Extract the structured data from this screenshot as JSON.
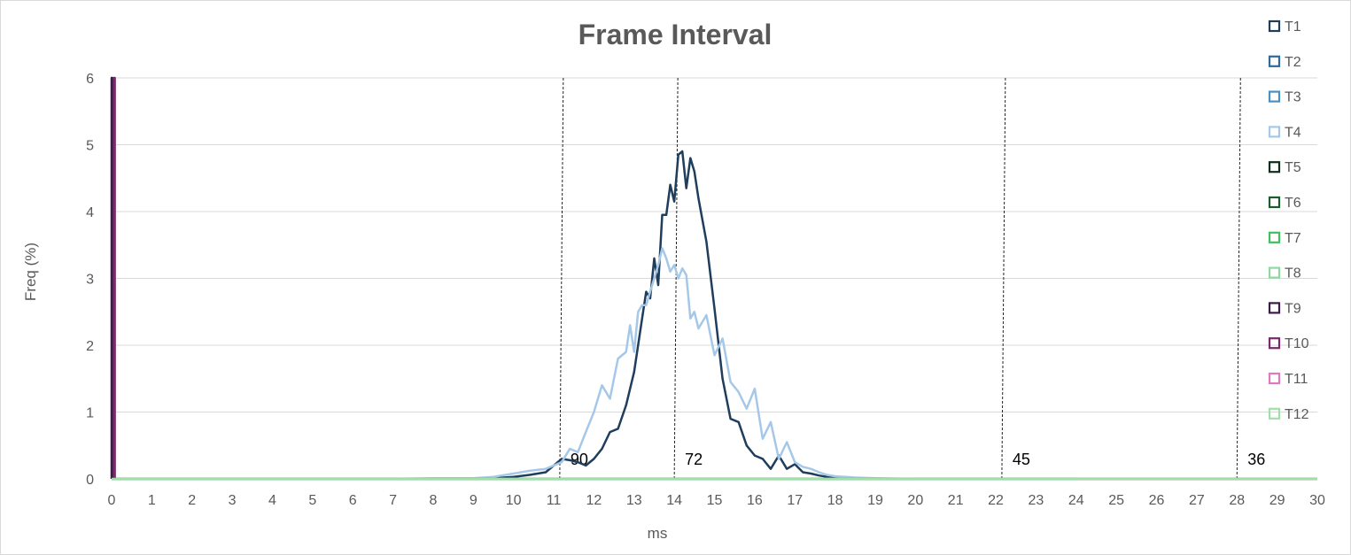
{
  "chart_data": {
    "type": "line",
    "title": "Frame Interval",
    "xlabel": "ms",
    "ylabel": "Freq (%)",
    "xlim": [
      0,
      30
    ],
    "ylim": [
      0,
      6
    ],
    "x_ticks": [
      "0",
      "1",
      "2",
      "3",
      "4",
      "5",
      "6",
      "7",
      "8",
      "9",
      "10",
      "11",
      "12",
      "13",
      "14",
      "15",
      "16",
      "17",
      "18",
      "19",
      "20",
      "21",
      "22",
      "23",
      "24",
      "25",
      "26",
      "27",
      "28",
      "29",
      "30"
    ],
    "y_ticks": [
      "0",
      "1",
      "2",
      "3",
      "4",
      "5",
      "6"
    ],
    "grid": "horizontal",
    "legend_position": "right",
    "reference_lines": [
      {
        "x": 11.15,
        "label": "90"
      },
      {
        "x": 14.0,
        "label": "72"
      },
      {
        "x": 22.15,
        "label": "45"
      },
      {
        "x": 28.0,
        "label": "36"
      }
    ],
    "series": [
      {
        "name": "T1",
        "color": "#1f3d5c",
        "x": [
          9.0,
          9.5,
          10.0,
          10.4,
          10.8,
          11.0,
          11.2,
          11.4,
          11.6,
          11.8,
          12.0,
          12.2,
          12.4,
          12.6,
          12.8,
          13.0,
          13.2,
          13.3,
          13.4,
          13.5,
          13.6,
          13.7,
          13.8,
          13.9,
          14.0,
          14.1,
          14.2,
          14.3,
          14.4,
          14.5,
          14.6,
          14.8,
          15.0,
          15.2,
          15.4,
          15.6,
          15.8,
          16.0,
          16.2,
          16.4,
          16.6,
          16.8,
          17.0,
          17.2,
          17.4,
          17.6,
          17.8,
          18.0,
          18.5,
          19.0,
          20.0
        ],
        "y": [
          0.0,
          0.01,
          0.03,
          0.06,
          0.1,
          0.2,
          0.3,
          0.28,
          0.25,
          0.2,
          0.3,
          0.45,
          0.7,
          0.75,
          1.1,
          1.6,
          2.4,
          2.8,
          2.7,
          3.3,
          2.9,
          3.95,
          3.95,
          4.4,
          4.15,
          4.85,
          4.9,
          4.35,
          4.8,
          4.6,
          4.2,
          3.55,
          2.55,
          1.5,
          0.9,
          0.85,
          0.5,
          0.35,
          0.3,
          0.15,
          0.35,
          0.15,
          0.22,
          0.1,
          0.08,
          0.05,
          0.03,
          0.02,
          0.01,
          0.0,
          0.0
        ]
      },
      {
        "name": "T2",
        "color": "#2e6a9e",
        "x": [
          0,
          30
        ],
        "y": [
          0,
          0
        ]
      },
      {
        "name": "T3",
        "color": "#4a90c2",
        "x": [
          0,
          30
        ],
        "y": [
          0,
          0
        ]
      },
      {
        "name": "T4",
        "color": "#a6c8e8",
        "x": [
          7.0,
          8.0,
          9.0,
          9.5,
          10.0,
          10.4,
          10.8,
          11.0,
          11.2,
          11.4,
          11.6,
          11.8,
          12.0,
          12.2,
          12.4,
          12.6,
          12.8,
          12.9,
          13.0,
          13.1,
          13.2,
          13.3,
          13.4,
          13.5,
          13.6,
          13.7,
          13.8,
          13.9,
          14.0,
          14.1,
          14.2,
          14.3,
          14.4,
          14.5,
          14.6,
          14.8,
          15.0,
          15.2,
          15.4,
          15.6,
          15.8,
          16.0,
          16.2,
          16.4,
          16.6,
          16.8,
          17.0,
          17.2,
          17.4,
          17.6,
          17.8,
          18.0,
          18.5,
          19.0,
          20.0
        ],
        "y": [
          0.0,
          0.01,
          0.01,
          0.03,
          0.08,
          0.12,
          0.15,
          0.2,
          0.25,
          0.45,
          0.4,
          0.7,
          1.0,
          1.4,
          1.2,
          1.8,
          1.9,
          2.3,
          1.9,
          2.5,
          2.6,
          2.6,
          2.8,
          3.0,
          3.2,
          3.45,
          3.3,
          3.1,
          3.2,
          3.0,
          3.15,
          3.05,
          2.4,
          2.5,
          2.25,
          2.45,
          1.85,
          2.1,
          1.45,
          1.3,
          1.05,
          1.35,
          0.6,
          0.85,
          0.3,
          0.55,
          0.25,
          0.18,
          0.15,
          0.1,
          0.06,
          0.04,
          0.02,
          0.01,
          0.0
        ]
      },
      {
        "name": "T5",
        "color": "#0f2e1c",
        "x": [
          0,
          30
        ],
        "y": [
          0,
          0
        ]
      },
      {
        "name": "T6",
        "color": "#1e5c30",
        "x": [
          0,
          30
        ],
        "y": [
          0,
          0
        ]
      },
      {
        "name": "T7",
        "color": "#3fbf5f",
        "x": [
          0,
          30
        ],
        "y": [
          0,
          0
        ]
      },
      {
        "name": "T8",
        "color": "#8fd9a0",
        "x": [
          0,
          30
        ],
        "y": [
          0,
          0
        ]
      },
      {
        "name": "T9",
        "color": "#3c1a4a",
        "x": [
          0.0,
          0.0,
          0.02,
          0.02
        ],
        "y": [
          0,
          6,
          6,
          0
        ]
      },
      {
        "name": "T10",
        "color": "#7a2a6a",
        "x": [
          0.06,
          0.06,
          0.08,
          0.08
        ],
        "y": [
          0,
          6,
          6,
          0
        ]
      },
      {
        "name": "T11",
        "color": "#e07ac0",
        "x": [
          24,
          30
        ],
        "y": [
          0,
          0
        ]
      },
      {
        "name": "T12",
        "color": "#a0e0a8",
        "x": [
          0,
          30
        ],
        "y": [
          0,
          0
        ]
      }
    ]
  }
}
